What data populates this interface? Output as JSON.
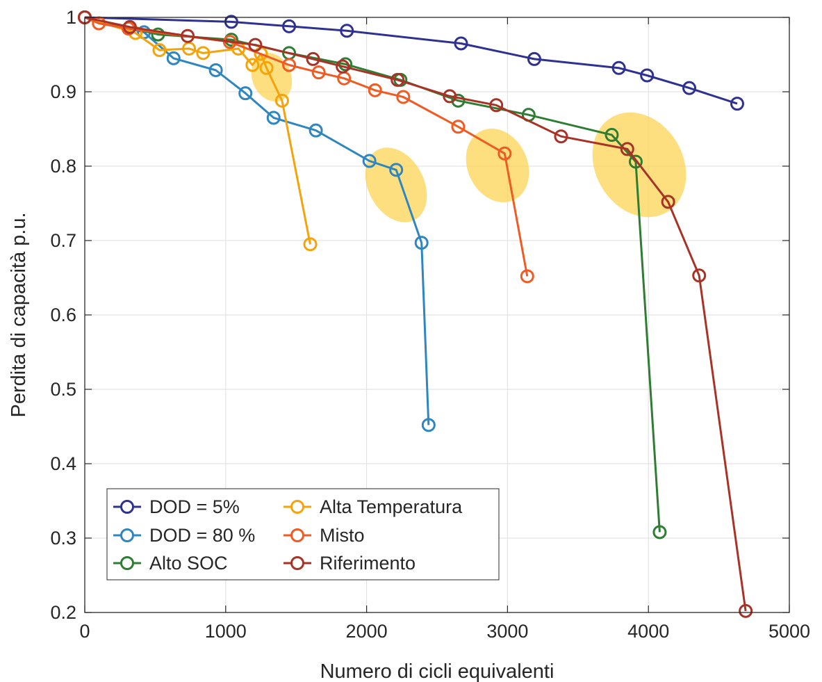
{
  "chart_data": {
    "type": "line",
    "title": "",
    "xlabel": "Numero di cicli equivalenti",
    "ylabel": "Perdita di capacità p.u.",
    "xlim": [
      0,
      5000
    ],
    "ylim": [
      0.2,
      1.0
    ],
    "xticks": [
      0,
      1000,
      2000,
      3000,
      4000,
      5000
    ],
    "yticks": [
      0.2,
      0.3,
      0.4,
      0.5,
      0.6,
      0.7,
      0.8,
      0.9,
      1.0
    ],
    "xtick_labels": [
      "0",
      "1000",
      "2000",
      "3000",
      "4000",
      "5000"
    ],
    "ytick_labels": [
      "0.2",
      "0.3",
      "0.4",
      "0.5",
      "0.6",
      "0.7",
      "0.8",
      "0.9",
      "1"
    ],
    "grid": true,
    "legend": {
      "placement": "bottom-left",
      "columns": 2
    },
    "marker": "circle",
    "series": [
      {
        "name": "DOD = 5%",
        "color": "#2e3192",
        "x": [
          0,
          1040,
          1450,
          1860,
          2670,
          3190,
          3790,
          3990,
          4290,
          4630
        ],
        "y": [
          1.0,
          0.994,
          0.988,
          0.982,
          0.965,
          0.944,
          0.932,
          0.922,
          0.905,
          0.884
        ]
      },
      {
        "name": "DOD = 80 %",
        "color": "#2e86c1",
        "x": [
          0,
          420,
          630,
          930,
          1140,
          1340,
          1640,
          2020,
          2210,
          2390,
          2440
        ],
        "y": [
          1.0,
          0.98,
          0.945,
          0.929,
          0.898,
          0.865,
          0.848,
          0.807,
          0.795,
          0.697,
          0.452
        ]
      },
      {
        "name": "Alto SOC",
        "color": "#2e7d32",
        "x": [
          0,
          520,
          1040,
          1450,
          1850,
          2240,
          2650,
          3150,
          3740,
          3910,
          4080
        ],
        "y": [
          1.0,
          0.977,
          0.97,
          0.952,
          0.937,
          0.916,
          0.888,
          0.869,
          0.842,
          0.806,
          0.308
        ]
      },
      {
        "name": "Alta Temperatura",
        "color": "#f5a30a",
        "x": [
          0,
          360,
          530,
          740,
          840,
          1090,
          1190,
          1250,
          1290,
          1400,
          1600
        ],
        "y": [
          1.0,
          0.979,
          0.956,
          0.958,
          0.952,
          0.958,
          0.936,
          0.951,
          0.932,
          0.888,
          0.695
        ]
      },
      {
        "name": "Misto",
        "color": "#f05a23",
        "x": [
          0,
          100,
          310,
          1030,
          1450,
          1660,
          1840,
          2060,
          2260,
          2650,
          2980,
          3140
        ],
        "y": [
          1.0,
          0.992,
          0.985,
          0.967,
          0.936,
          0.926,
          0.918,
          0.902,
          0.893,
          0.853,
          0.817,
          0.652
        ]
      },
      {
        "name": "Riferimento",
        "color": "#a93226",
        "x": [
          0,
          320,
          730,
          1210,
          1620,
          1830,
          2220,
          2590,
          2920,
          3380,
          3850,
          4140,
          4360,
          4690
        ],
        "y": [
          1.0,
          0.987,
          0.975,
          0.963,
          0.944,
          0.934,
          0.916,
          0.894,
          0.882,
          0.84,
          0.823,
          0.752,
          0.653,
          0.202
        ]
      }
    ],
    "highlights": {
      "color": "#fcd34d",
      "opacity": 0.72
    }
  }
}
